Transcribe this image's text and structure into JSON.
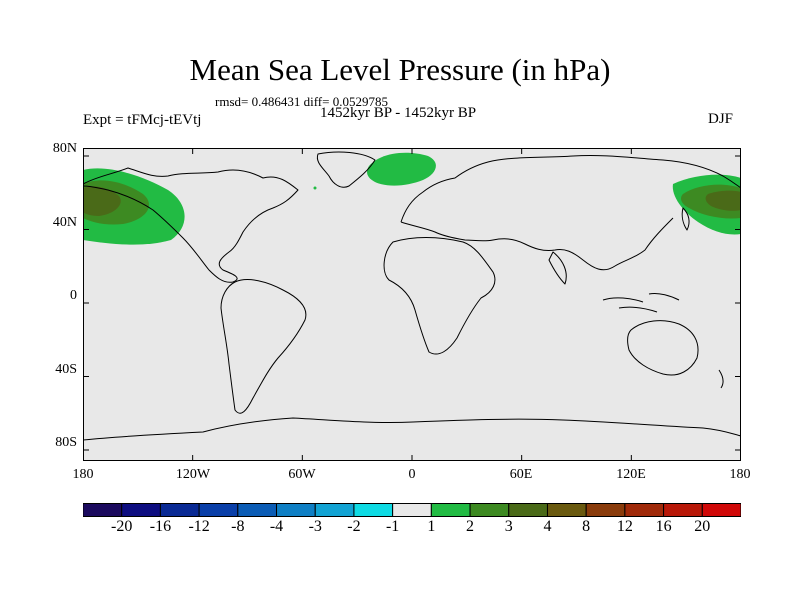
{
  "title": "Mean Sea Level Pressure (in hPa)",
  "stats": "rmsd= 0.486431  diff= 0.0529785",
  "period": "1452kyr BP - 1452kyr BP",
  "experiment": "Expt = tFMcj-tEVtj",
  "season": "DJF",
  "map": {
    "y_labels": [
      "80N",
      "40N",
      "0",
      "40S",
      "80S"
    ],
    "x_labels": [
      "180",
      "120W",
      "60W",
      "0",
      "60E",
      "120E",
      "180"
    ],
    "background_color": "#e8e8e8"
  },
  "colorbar": {
    "labels": [
      "-20",
      "-16",
      "-12",
      "-8",
      "-4",
      "-3",
      "-2",
      "-1",
      "1",
      "2",
      "3",
      "4",
      "8",
      "12",
      "16",
      "20"
    ],
    "colors": [
      "#1b0a5e",
      "#0d0d80",
      "#0a2a94",
      "#0a3fa8",
      "#0b5cb5",
      "#0f7fc4",
      "#12a3d3",
      "#0fdbe4",
      "#e8e8e8",
      "#22bb44",
      "#3d8a22",
      "#4a6a18",
      "#6a5a10",
      "#8a3c0c",
      "#a02a0a",
      "#b81808",
      "#d00808"
    ]
  }
}
